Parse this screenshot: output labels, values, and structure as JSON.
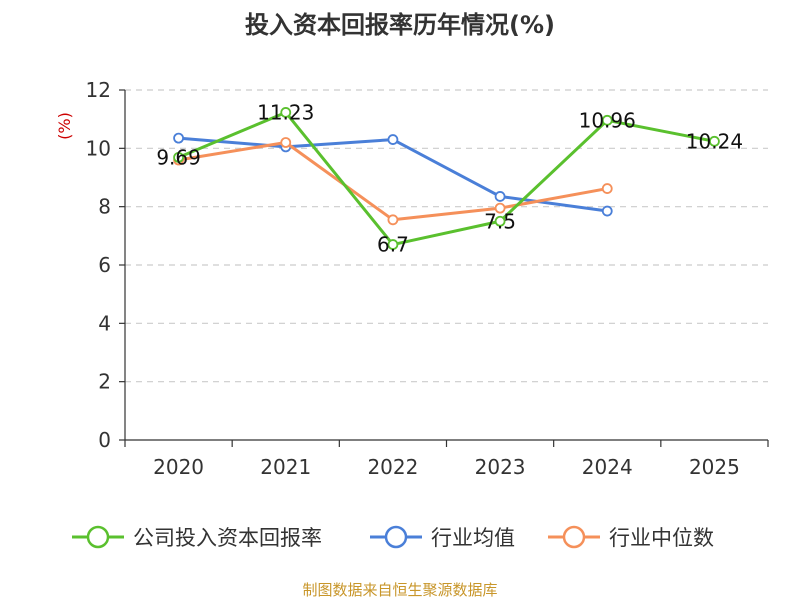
{
  "chart_data": {
    "type": "line",
    "title": "投入资本回报率历年情况(%)",
    "ylabel": "(%)",
    "xlabel": "",
    "categories": [
      "2020",
      "2021",
      "2022",
      "2023",
      "2024",
      "2025"
    ],
    "ylim": [
      0,
      12
    ],
    "yticks": [
      0,
      2,
      4,
      6,
      8,
      10,
      12
    ],
    "grid": true,
    "legend_position": "bottom",
    "series": [
      {
        "name": "公司投入资本回报率",
        "color": "#5ac02e",
        "values": [
          9.69,
          11.23,
          6.7,
          7.5,
          10.96,
          10.24
        ],
        "labels": [
          "9.69",
          "11.23",
          "6.7",
          "7.5",
          "10.96",
          "10.24"
        ]
      },
      {
        "name": "行业均值",
        "color": "#4a7fd8",
        "values": [
          10.35,
          10.05,
          10.3,
          8.35,
          7.85,
          null
        ]
      },
      {
        "name": "行业中位数",
        "color": "#f5905a",
        "values": [
          9.6,
          10.2,
          7.55,
          7.95,
          8.62,
          null
        ]
      }
    ],
    "source": "制图数据来自恒生聚源数据库"
  }
}
